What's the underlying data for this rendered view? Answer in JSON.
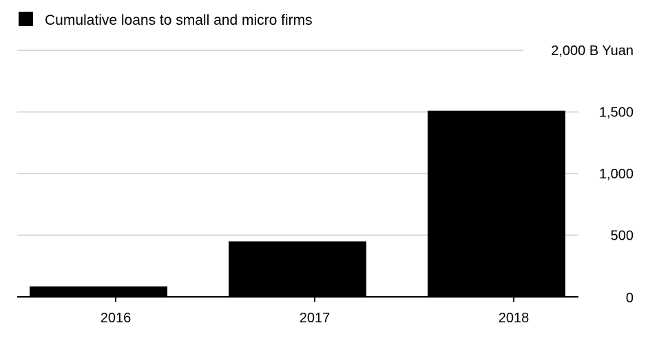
{
  "chart_data": {
    "type": "bar",
    "categories": [
      "2016",
      "2017",
      "2018"
    ],
    "series": [
      {
        "name": "Cumulative loans to small and micro firms",
        "values": [
          85,
          450,
          1510
        ]
      }
    ],
    "ylim": [
      0,
      2000
    ],
    "yticks": [
      "0",
      "500",
      "1,000",
      "1,500",
      "2,000 B Yuan"
    ],
    "ytick_values": [
      0,
      500,
      1000,
      1500,
      2000
    ],
    "grid": true,
    "legend_position": "top-left",
    "colors": {
      "bar": "#000000",
      "grid": "#d9d9d9",
      "axis": "#000000"
    }
  }
}
